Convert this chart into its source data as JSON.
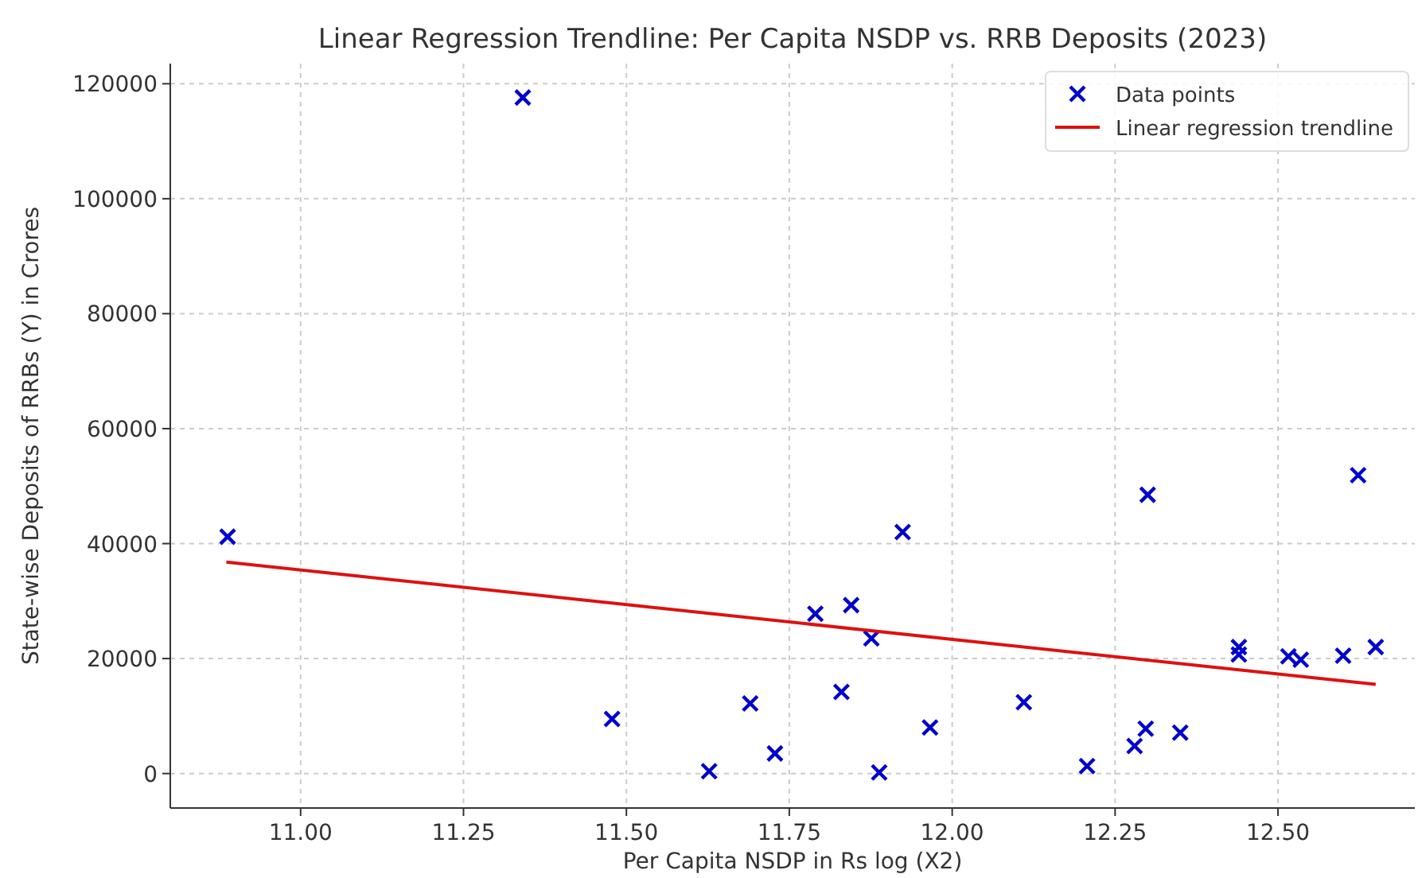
{
  "chart_data": {
    "type": "scatter",
    "title": "Linear Regression Trendline: Per Capita NSDP vs. RRB Deposits (2023)",
    "xlabel": "Per Capita NSDP in Rs log (X2)",
    "ylabel": "State-wise Deposits of RRBs (Y) in Crores",
    "xlim": [
      10.8,
      12.71
    ],
    "ylim": [
      -6000,
      123500
    ],
    "xticks": [
      {
        "value": 11,
        "label": "11.00"
      },
      {
        "value": 11.25,
        "label": "11.25"
      },
      {
        "value": 11.5,
        "label": "11.50"
      },
      {
        "value": 11.75,
        "label": "11.75"
      },
      {
        "value": 12,
        "label": "12.00"
      },
      {
        "value": 12.25,
        "label": "12.25"
      },
      {
        "value": 12.5,
        "label": "12.50"
      }
    ],
    "yticks": [
      0,
      20000,
      40000,
      60000,
      80000,
      100000,
      120000
    ],
    "grid": true,
    "legend": "top right",
    "series": [
      {
        "name": "Data points",
        "marker": "cross",
        "color": "#0000cc",
        "x": [
          10.888,
          11.341,
          11.478,
          11.627,
          11.69,
          11.728,
          11.79,
          11.845,
          11.83,
          11.876,
          11.888,
          11.924,
          11.966,
          12.11,
          12.207,
          12.28,
          12.297,
          12.3,
          12.35,
          12.44,
          12.44,
          12.516,
          12.535,
          12.6,
          12.623,
          12.65
        ],
        "values": [
          41200,
          117600,
          9500,
          400,
          12200,
          3500,
          27800,
          29300,
          14200,
          23500,
          200,
          42000,
          8000,
          12400,
          1300,
          4800,
          7800,
          48500,
          7100,
          20700,
          22000,
          20400,
          19800,
          20500,
          51900,
          22000
        ]
      },
      {
        "name": "Linear regression trendline",
        "type": "line",
        "marker": "none",
        "line_style": "solid",
        "color": "#dd1111",
        "x": [
          10.886,
          12.65
        ],
        "values": [
          36800,
          15500
        ]
      }
    ]
  }
}
